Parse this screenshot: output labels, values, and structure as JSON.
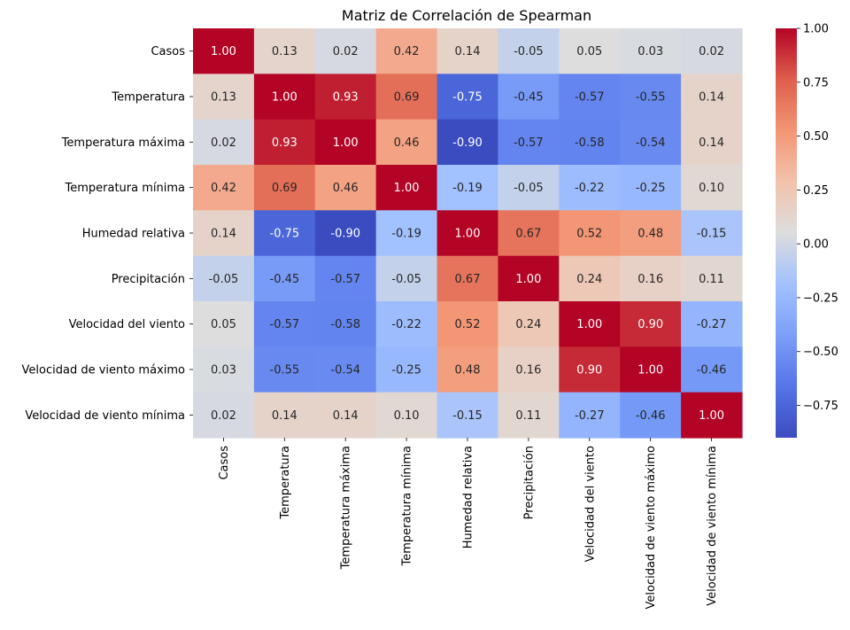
{
  "chart_data": {
    "type": "heatmap",
    "title": "Matriz de Correlación de Spearman",
    "rows": [
      "Casos",
      "Temperatura",
      "Temperatura máxima",
      "Temperatura mínima",
      "Humedad relativa",
      "Precipitación",
      "Velocidad del viento",
      "Velocidad de viento máximo",
      "Velocidad de viento mínima"
    ],
    "columns": [
      "Casos",
      "Temperatura",
      "Temperatura máxima",
      "Temperatura mínima",
      "Humedad relativa",
      "Precipitación",
      "Velocidad del viento",
      "Velocidad de viento máximo",
      "Velocidad de viento mínima"
    ],
    "values": [
      [
        1.0,
        0.13,
        0.02,
        0.42,
        0.14,
        -0.05,
        0.05,
        0.03,
        0.02
      ],
      [
        0.13,
        1.0,
        0.93,
        0.69,
        -0.75,
        -0.45,
        -0.57,
        -0.55,
        0.14
      ],
      [
        0.02,
        0.93,
        1.0,
        0.46,
        -0.9,
        -0.57,
        -0.58,
        -0.54,
        0.14
      ],
      [
        0.42,
        0.69,
        0.46,
        1.0,
        -0.19,
        -0.05,
        -0.22,
        -0.25,
        0.1
      ],
      [
        0.14,
        -0.75,
        -0.9,
        -0.19,
        1.0,
        0.67,
        0.52,
        0.48,
        -0.15
      ],
      [
        -0.05,
        -0.45,
        -0.57,
        -0.05,
        0.67,
        1.0,
        0.24,
        0.16,
        0.11
      ],
      [
        0.05,
        -0.57,
        -0.58,
        -0.22,
        0.52,
        0.24,
        1.0,
        0.9,
        -0.27
      ],
      [
        0.03,
        -0.55,
        -0.54,
        -0.25,
        0.48,
        0.16,
        0.9,
        1.0,
        -0.46
      ],
      [
        0.02,
        0.14,
        0.14,
        0.1,
        -0.15,
        0.11,
        -0.27,
        -0.46,
        1.0
      ]
    ],
    "colormap": "coolwarm",
    "vmin": -0.9,
    "vmax": 1.0,
    "colorbar_ticks": [
      1.0,
      0.75,
      0.5,
      0.25,
      0.0,
      -0.25,
      -0.5,
      -0.75
    ],
    "colorbar_tick_labels": [
      "1.00",
      "0.75",
      "0.50",
      "0.25",
      "0.00",
      "−0.25",
      "−0.50",
      "−0.75"
    ],
    "annotation_format": "0.00"
  }
}
